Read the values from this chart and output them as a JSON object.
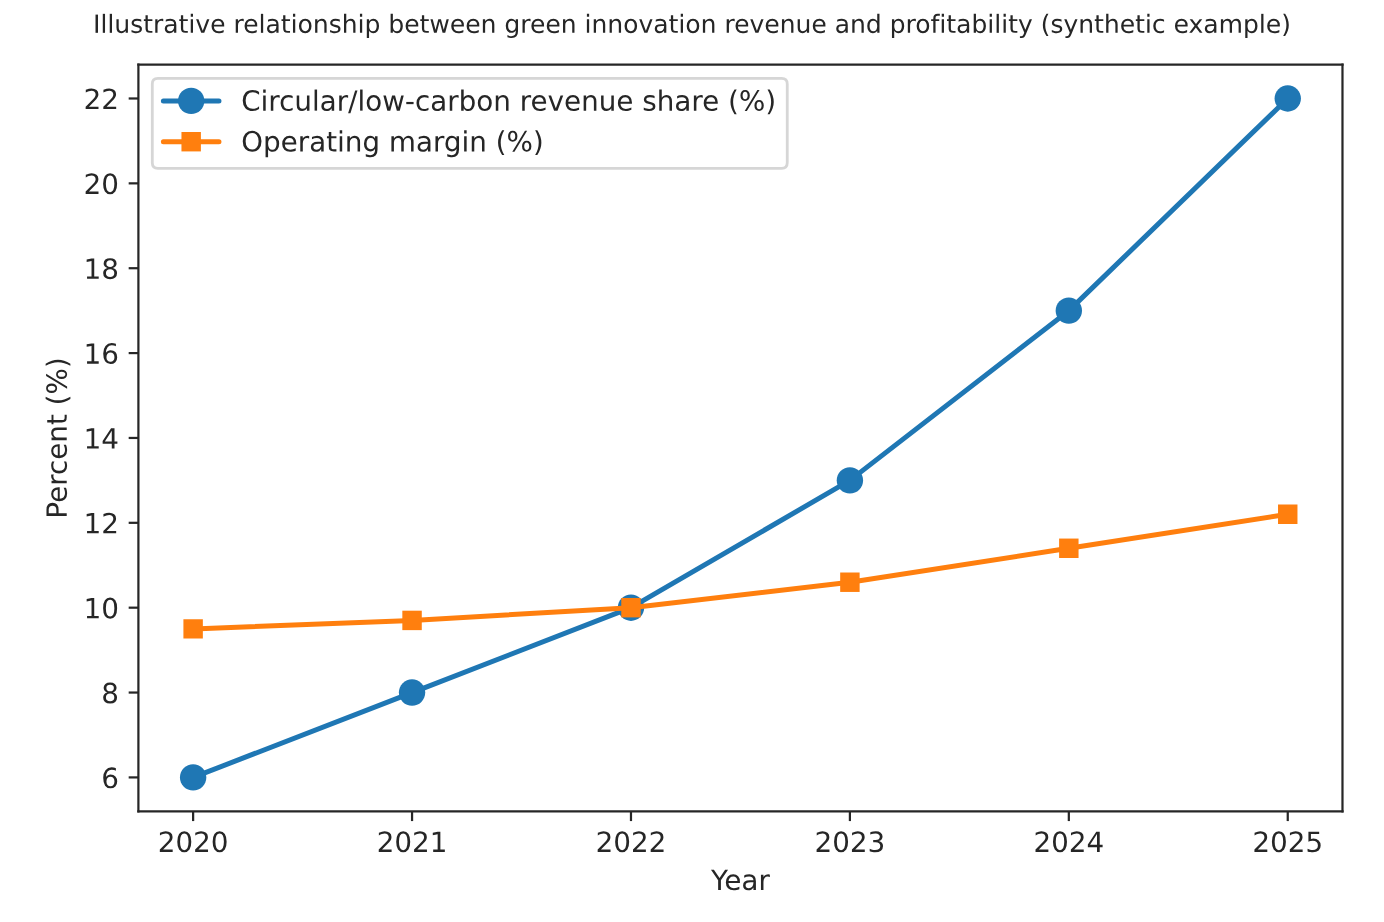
{
  "chart_data": {
    "type": "line",
    "title": "Illustrative relationship between green innovation revenue and profitability (synthetic example)",
    "xlabel": "Year",
    "ylabel": "Percent (%)",
    "x": [
      2020,
      2021,
      2022,
      2023,
      2024,
      2025
    ],
    "series": [
      {
        "name": "Circular/low-carbon revenue share (%)",
        "color": "#1f77b4",
        "values": [
          6,
          8,
          10,
          13,
          17,
          22
        ],
        "marker": "circle"
      },
      {
        "name": "Operating margin (%)",
        "color": "#ff7f0e",
        "values": [
          9.5,
          9.7,
          10.0,
          10.6,
          11.4,
          12.2
        ],
        "marker": "square"
      }
    ],
    "xlim": [
      2019.75,
      2025.25
    ],
    "xticks": [
      2020,
      2021,
      2022,
      2023,
      2024,
      2025
    ],
    "ylim": [
      5.2,
      22.8
    ],
    "yticks": [
      6,
      8,
      10,
      12,
      14,
      16,
      18,
      20,
      22
    ],
    "legend": "top left",
    "grid": false,
    "line_style": "solid"
  }
}
